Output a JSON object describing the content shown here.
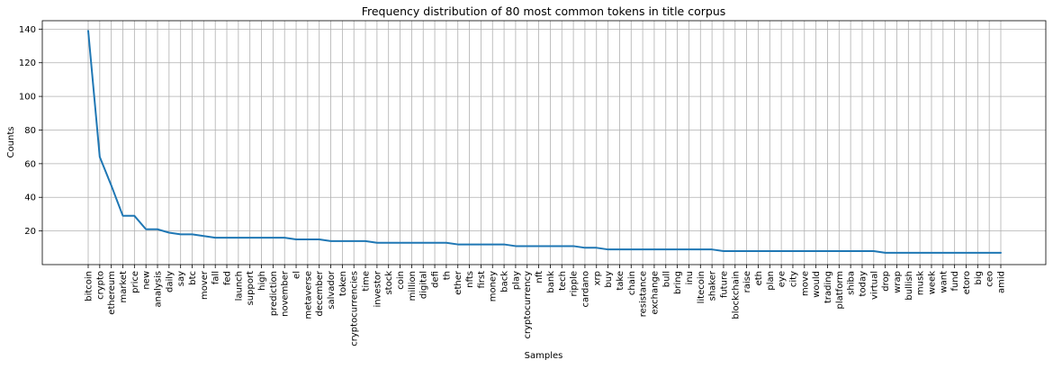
{
  "chart_data": {
    "type": "line",
    "title": "Frequency distribution of 80 most common tokens in title corpus",
    "xlabel": "Samples",
    "ylabel": "Counts",
    "ylim": [
      0,
      145
    ],
    "yticks": [
      20,
      40,
      60,
      80,
      100,
      120,
      140
    ],
    "grid": true,
    "line_color": "#1f77b4",
    "categories": [
      "bitcoin",
      "crypto",
      "ethereum",
      "market",
      "price",
      "new",
      "analysis",
      "daily",
      "say",
      "btc",
      "mover",
      "fall",
      "fed",
      "launch",
      "support",
      "high",
      "prediction",
      "november",
      "el",
      "metaverse",
      "december",
      "salvador",
      "token",
      "cryptocurrencies",
      "time",
      "investor",
      "stock",
      "coin",
      "million",
      "digital",
      "defi",
      "th",
      "ether",
      "nfts",
      "first",
      "money",
      "back",
      "play",
      "cryptocurrency",
      "nft",
      "bank",
      "tech",
      "ripple",
      "cardano",
      "xrp",
      "buy",
      "take",
      "chain",
      "resistance",
      "exchange",
      "bull",
      "bring",
      "inu",
      "litecoin",
      "shaker",
      "future",
      "blockchain",
      "raise",
      "eth",
      "plan",
      "eye",
      "city",
      "move",
      "would",
      "trading",
      "platform",
      "shiba",
      "today",
      "virtual",
      "drop",
      "wrap",
      "bullish",
      "musk",
      "week",
      "want",
      "fund",
      "etoro",
      "big",
      "ceo",
      "amid"
    ],
    "values": [
      139,
      64,
      47,
      29,
      29,
      21,
      21,
      19,
      18,
      18,
      17,
      16,
      16,
      16,
      16,
      16,
      16,
      16,
      15,
      15,
      15,
      14,
      14,
      14,
      14,
      13,
      13,
      13,
      13,
      13,
      13,
      13,
      12,
      12,
      12,
      12,
      12,
      11,
      11,
      11,
      11,
      11,
      11,
      10,
      10,
      9,
      9,
      9,
      9,
      9,
      9,
      9,
      9,
      9,
      9,
      8,
      8,
      8,
      8,
      8,
      8,
      8,
      8,
      8,
      8,
      8,
      8,
      8,
      8,
      7,
      7,
      7,
      7,
      7,
      7,
      7,
      7,
      7,
      7,
      7
    ]
  }
}
